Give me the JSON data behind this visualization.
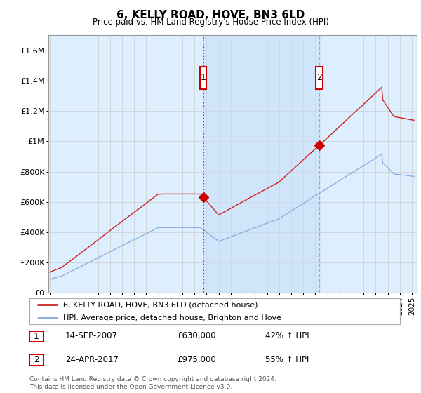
{
  "title": "6, KELLY ROAD, HOVE, BN3 6LD",
  "subtitle": "Price paid vs. HM Land Registry's House Price Index (HPI)",
  "ylabel_ticks": [
    "£0",
    "£200K",
    "£400K",
    "£600K",
    "£800K",
    "£1M",
    "£1.2M",
    "£1.4M",
    "£1.6M"
  ],
  "ytick_values": [
    0,
    200000,
    400000,
    600000,
    800000,
    1000000,
    1200000,
    1400000,
    1600000
  ],
  "ylim": [
    0,
    1700000
  ],
  "xlim_start": 1994.9,
  "xlim_end": 2025.4,
  "sale1_x": 2007.71,
  "sale1_y": 630000,
  "sale1_label": "1",
  "sale1_vline_color": "#cc0000",
  "sale1_vline_style": "dotted",
  "sale2_x": 2017.32,
  "sale2_y": 975000,
  "sale2_label": "2",
  "sale2_vline_color": "#aaaaaa",
  "sale2_vline_style": "dashed",
  "legend_line1": "6, KELLY ROAD, HOVE, BN3 6LD (detached house)",
  "legend_line2": "HPI: Average price, detached house, Brighton and Hove",
  "table_row1": [
    "1",
    "14-SEP-2007",
    "£630,000",
    "42% ↑ HPI"
  ],
  "table_row2": [
    "2",
    "24-APR-2017",
    "£975,000",
    "55% ↑ HPI"
  ],
  "footnote": "Contains HM Land Registry data © Crown copyright and database right 2024.\nThis data is licensed under the Open Government Licence v3.0.",
  "price_color": "#cc2222",
  "hpi_color": "#88aadd",
  "background_fill": "#ddeeff",
  "shade_fill": "#c8dff5",
  "grid_color": "#cccccc",
  "box_edge_color": "#cc0000",
  "marker_color": "#cc0000"
}
